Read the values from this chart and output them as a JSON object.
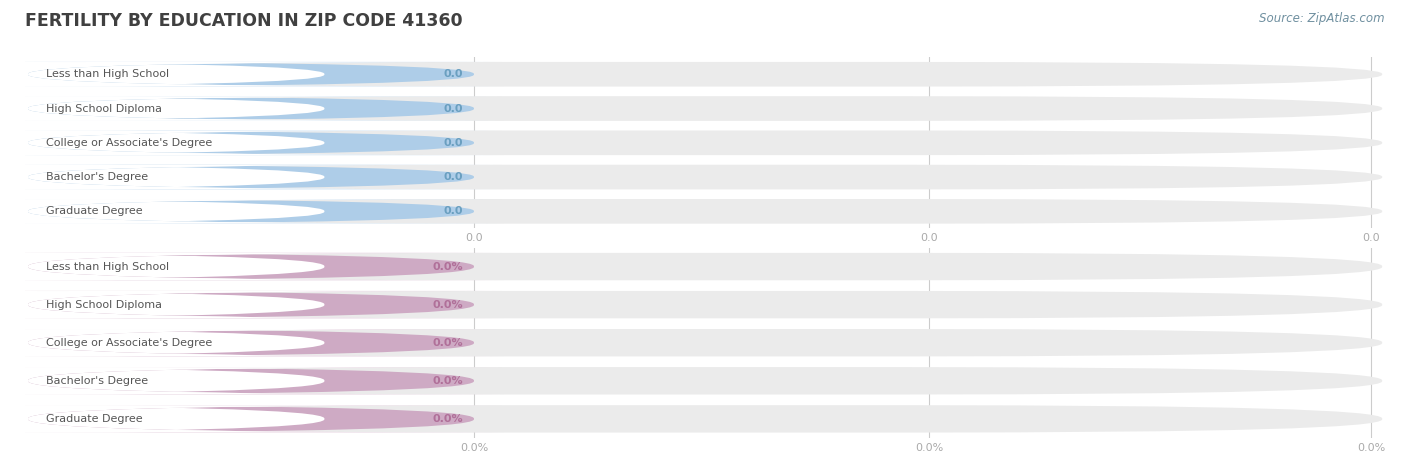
{
  "title": "FERTILITY BY EDUCATION IN ZIP CODE 41360",
  "source": "Source: ZipAtlas.com",
  "categories": [
    "Less than High School",
    "High School Diploma",
    "College or Associate's Degree",
    "Bachelor's Degree",
    "Graduate Degree"
  ],
  "group1_values": [
    0.0,
    0.0,
    0.0,
    0.0,
    0.0
  ],
  "group2_values": [
    0.0,
    0.0,
    0.0,
    0.0,
    0.0
  ],
  "group1_label_suffix": "",
  "group2_label_suffix": "%",
  "group1_bar_color": "#aecde8",
  "group1_bg_color": "#e4edf5",
  "group1_label_bg": "#ffffff",
  "group2_bar_color": "#ceaac4",
  "group2_bg_color": "#ede3ea",
  "group2_label_bg": "#ffffff",
  "bar_bg_color": "#eeeeee",
  "bg_color": "#ffffff",
  "title_color": "#404040",
  "label_text_color": "#555555",
  "value_text_color_g1": "#6a9fc0",
  "value_text_color_g2": "#b07099",
  "tick_color": "#aaaaaa",
  "grid_color": "#cccccc",
  "n_xticks": 3
}
